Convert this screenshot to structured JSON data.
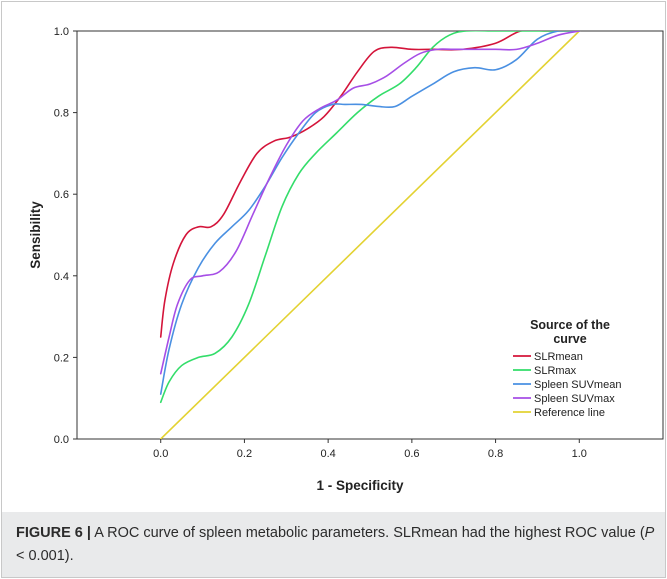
{
  "chart_data": {
    "type": "line",
    "xlabel": "1 - Specificity",
    "ylabel": "Sensibility",
    "xlim": [
      -0.2,
      1.2
    ],
    "ylim": [
      0.0,
      1.0
    ],
    "x_ticks": [
      0.0,
      0.2,
      0.4,
      0.6,
      0.8,
      1.0
    ],
    "y_ticks": [
      0.0,
      0.2,
      0.4,
      0.6,
      0.8,
      1.0
    ],
    "x_tick_labels": [
      "0.0",
      "0.2",
      "0.4",
      "0.6",
      "0.8",
      "1.0"
    ],
    "y_tick_labels": [
      "0.0",
      "0.2",
      "0.4",
      "0.6",
      "0.8",
      "1.0"
    ],
    "grid": false,
    "legend": {
      "title": [
        "Source of the",
        "curve"
      ],
      "placement": "bottom-right"
    },
    "series": [
      {
        "name": "SLRmean",
        "color": "#d4143a",
        "x": [
          0.0,
          0.01,
          0.03,
          0.06,
          0.09,
          0.12,
          0.15,
          0.19,
          0.23,
          0.27,
          0.31,
          0.35,
          0.39,
          0.43,
          0.47,
          0.51,
          0.55,
          0.6,
          0.65,
          0.72,
          0.8,
          0.86,
          0.92,
          1.0
        ],
        "y": [
          0.25,
          0.34,
          0.43,
          0.5,
          0.52,
          0.52,
          0.55,
          0.63,
          0.7,
          0.73,
          0.74,
          0.76,
          0.79,
          0.84,
          0.9,
          0.95,
          0.96,
          0.955,
          0.955,
          0.955,
          0.97,
          1.0,
          1.0,
          1.0
        ]
      },
      {
        "name": "SLRmax",
        "color": "#33dd6a",
        "x": [
          0.0,
          0.02,
          0.05,
          0.09,
          0.13,
          0.17,
          0.21,
          0.25,
          0.29,
          0.33,
          0.37,
          0.42,
          0.47,
          0.52,
          0.57,
          0.61,
          0.65,
          0.69,
          0.73,
          0.8,
          0.88,
          1.0
        ],
        "y": [
          0.09,
          0.14,
          0.18,
          0.2,
          0.21,
          0.25,
          0.33,
          0.45,
          0.57,
          0.65,
          0.7,
          0.75,
          0.8,
          0.84,
          0.87,
          0.91,
          0.96,
          0.99,
          1.0,
          1.0,
          1.0,
          1.0
        ]
      },
      {
        "name": "Spleen SUVmean",
        "color": "#4a90e2",
        "x": [
          0.0,
          0.02,
          0.05,
          0.09,
          0.13,
          0.17,
          0.21,
          0.25,
          0.29,
          0.33,
          0.37,
          0.41,
          0.44,
          0.48,
          0.52,
          0.56,
          0.6,
          0.65,
          0.7,
          0.75,
          0.8,
          0.85,
          0.9,
          0.95,
          1.0
        ],
        "y": [
          0.11,
          0.22,
          0.33,
          0.42,
          0.48,
          0.52,
          0.56,
          0.62,
          0.69,
          0.75,
          0.8,
          0.82,
          0.82,
          0.82,
          0.815,
          0.815,
          0.84,
          0.87,
          0.9,
          0.91,
          0.905,
          0.93,
          0.98,
          1.0,
          1.0
        ]
      },
      {
        "name": "Spleen SUVmax",
        "color": "#a64ee6",
        "x": [
          0.0,
          0.02,
          0.04,
          0.07,
          0.1,
          0.14,
          0.18,
          0.22,
          0.26,
          0.3,
          0.34,
          0.38,
          0.42,
          0.46,
          0.5,
          0.54,
          0.58,
          0.62,
          0.66,
          0.7,
          0.75,
          0.8,
          0.85,
          0.9,
          0.95,
          1.0
        ],
        "y": [
          0.16,
          0.25,
          0.33,
          0.39,
          0.4,
          0.41,
          0.46,
          0.55,
          0.64,
          0.72,
          0.78,
          0.81,
          0.83,
          0.86,
          0.87,
          0.89,
          0.92,
          0.945,
          0.955,
          0.955,
          0.955,
          0.955,
          0.955,
          0.97,
          0.99,
          1.0
        ]
      },
      {
        "name": "Reference line",
        "color": "#e3d232",
        "x": [
          0.0,
          1.0
        ],
        "y": [
          0.0,
          1.0
        ]
      }
    ]
  },
  "caption": {
    "label": "FIGURE 6 |",
    "text": " A ROC curve of spleen metabolic parameters. SLRmean had the highest ROC value (",
    "p_symbol": "P",
    "p_rest": " < 0.001)."
  }
}
